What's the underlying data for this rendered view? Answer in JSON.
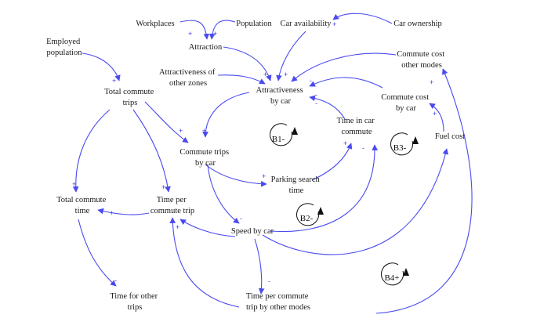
{
  "nodes": {
    "workplaces": [
      "Workplaces"
    ],
    "population": [
      "Population"
    ],
    "car_availability": [
      "Car availability"
    ],
    "car_ownership": [
      "Car ownership"
    ],
    "employed_population": [
      "Employed",
      "population"
    ],
    "attraction": [
      "Attraction"
    ],
    "commute_cost_other_modes": [
      "Commute cost",
      "other modes"
    ],
    "attractiveness_other_zones": [
      "Attractiveness of",
      "other zones"
    ],
    "attractiveness_by_car": [
      "Attractiveness",
      "by car"
    ],
    "total_commute_trips": [
      "Total commute",
      "trips"
    ],
    "commute_cost_by_car": [
      "Commute cost",
      "by car"
    ],
    "time_in_car_commute": [
      "Time in car",
      "commute"
    ],
    "fuel_cost": [
      "Fuel cost"
    ],
    "commute_trips_by_car": [
      "Commute trips",
      "by car"
    ],
    "parking_search_time": [
      "Parking search",
      "time"
    ],
    "total_commute_time": [
      "Total commute",
      "time"
    ],
    "time_per_commute_trip": [
      "Time per",
      "commute trip"
    ],
    "speed_by_car": [
      "Speed by car"
    ],
    "time_for_other_trips": [
      "Time for other",
      "trips"
    ],
    "time_per_commute_trip_other_modes": [
      "Time per commute",
      "trip by other modes"
    ]
  },
  "loops": {
    "b1": "B1-",
    "b2": "B2-",
    "b3": "B3-",
    "b4": "B4+"
  },
  "polarity": {
    "plus": "+",
    "minus": "-"
  },
  "colors": {
    "arrow": "#4a4af0",
    "text": "#1a1a1a",
    "loop": "#111111"
  }
}
